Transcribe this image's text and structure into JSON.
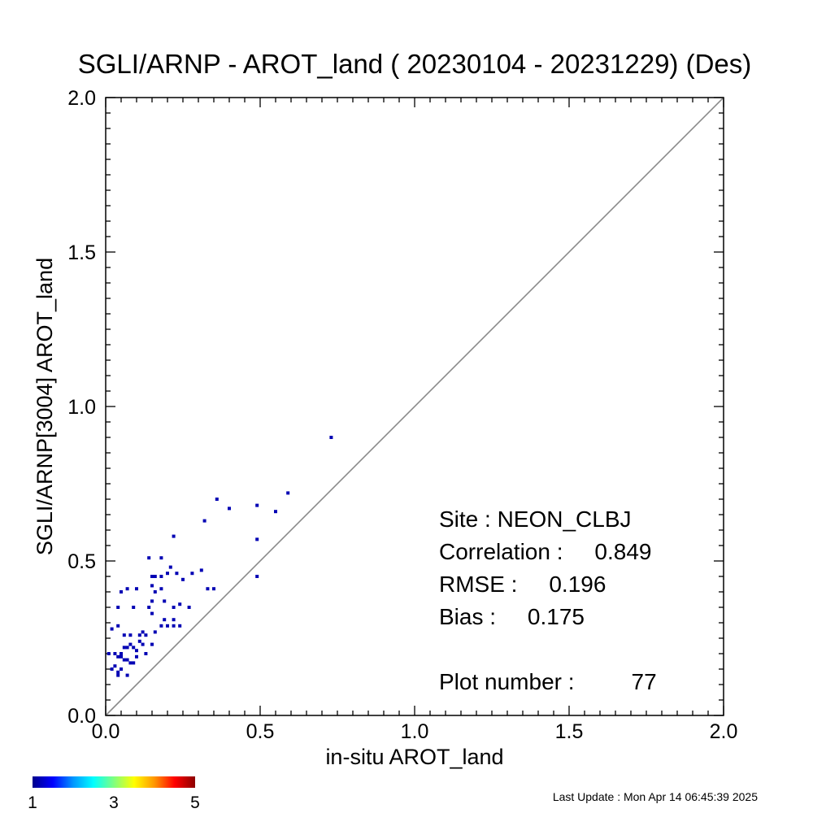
{
  "chart_data": {
    "type": "scatter",
    "title": "SGLI/ARNP - AROT_land ( 20230104 - 20231229) (Des)",
    "xlabel": "in-situ AROT_land",
    "ylabel": "SGLI/ARNP[3004]    AROT_land",
    "xlim": [
      0,
      2
    ],
    "ylim": [
      0,
      2
    ],
    "xticks": [
      "0.0",
      "0.5",
      "1.0",
      "1.5",
      "2.0"
    ],
    "yticks": [
      "0.0",
      "0.5",
      "1.0",
      "1.5",
      "2.0"
    ],
    "grid": false,
    "reference_line": "1:1",
    "point_color": "#0000b4",
    "points": [
      [
        0.73,
        0.9
      ],
      [
        0.36,
        0.7
      ],
      [
        0.4,
        0.67
      ],
      [
        0.49,
        0.68
      ],
      [
        0.59,
        0.72
      ],
      [
        0.55,
        0.66
      ],
      [
        0.32,
        0.63
      ],
      [
        0.49,
        0.57
      ],
      [
        0.49,
        0.45
      ],
      [
        0.22,
        0.58
      ],
      [
        0.18,
        0.51
      ],
      [
        0.14,
        0.51
      ],
      [
        0.16,
        0.45
      ],
      [
        0.18,
        0.45
      ],
      [
        0.21,
        0.48
      ],
      [
        0.2,
        0.46
      ],
      [
        0.23,
        0.46
      ],
      [
        0.25,
        0.44
      ],
      [
        0.28,
        0.46
      ],
      [
        0.31,
        0.47
      ],
      [
        0.33,
        0.41
      ],
      [
        0.35,
        0.41
      ],
      [
        0.15,
        0.45
      ],
      [
        0.15,
        0.42
      ],
      [
        0.16,
        0.4
      ],
      [
        0.18,
        0.41
      ],
      [
        0.15,
        0.37
      ],
      [
        0.19,
        0.37
      ],
      [
        0.22,
        0.35
      ],
      [
        0.24,
        0.36
      ],
      [
        0.27,
        0.35
      ],
      [
        0.14,
        0.35
      ],
      [
        0.15,
        0.33
      ],
      [
        0.1,
        0.41
      ],
      [
        0.07,
        0.41
      ],
      [
        0.05,
        0.4
      ],
      [
        0.09,
        0.35
      ],
      [
        0.04,
        0.35
      ],
      [
        0.02,
        0.28
      ],
      [
        0.04,
        0.29
      ],
      [
        0.06,
        0.26
      ],
      [
        0.08,
        0.26
      ],
      [
        0.11,
        0.26
      ],
      [
        0.12,
        0.27
      ],
      [
        0.13,
        0.26
      ],
      [
        0.16,
        0.27
      ],
      [
        0.18,
        0.29
      ],
      [
        0.2,
        0.29
      ],
      [
        0.22,
        0.29
      ],
      [
        0.24,
        0.29
      ],
      [
        0.19,
        0.31
      ],
      [
        0.22,
        0.31
      ],
      [
        0.01,
        0.2
      ],
      [
        0.03,
        0.2
      ],
      [
        0.04,
        0.19
      ],
      [
        0.05,
        0.2
      ],
      [
        0.06,
        0.18
      ],
      [
        0.06,
        0.22
      ],
      [
        0.07,
        0.22
      ],
      [
        0.08,
        0.23
      ],
      [
        0.09,
        0.22
      ],
      [
        0.1,
        0.21
      ],
      [
        0.12,
        0.23
      ],
      [
        0.13,
        0.2
      ],
      [
        0.15,
        0.23
      ],
      [
        0.02,
        0.15
      ],
      [
        0.03,
        0.16
      ],
      [
        0.04,
        0.13
      ],
      [
        0.05,
        0.15
      ],
      [
        0.07,
        0.18
      ],
      [
        0.08,
        0.17
      ],
      [
        0.09,
        0.17
      ],
      [
        0.07,
        0.13
      ],
      [
        0.1,
        0.19
      ],
      [
        0.11,
        0.24
      ],
      [
        0.05,
        0.19
      ],
      [
        0.04,
        0.14
      ]
    ],
    "stats": {
      "site": "Site : NEON_CLBJ",
      "correlation": "Correlation :     0.849",
      "rmse": "RMSE :     0.196",
      "bias": "Bias :     0.175",
      "plot_number": "Plot number :         77"
    },
    "colorbar": {
      "min_label": "1",
      "mid_label": "3",
      "max_label": "5",
      "colors": [
        "#00008c",
        "#0000ff",
        "#0096ff",
        "#00ffff",
        "#7fff7f",
        "#ffff00",
        "#ff9600",
        "#ff0000",
        "#8c0000"
      ]
    }
  },
  "last_update": "Last Update : Mon Apr 14 06:45:39 2025"
}
